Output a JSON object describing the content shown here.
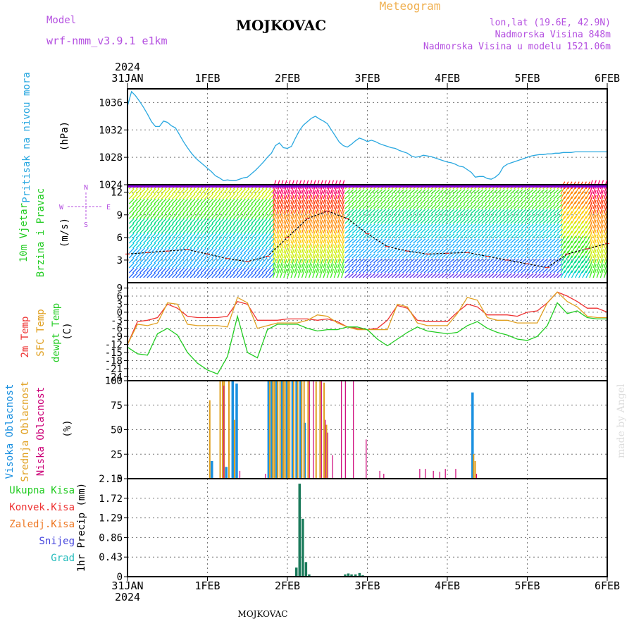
{
  "header": {
    "model_label": "Model",
    "model_name": "wrf-nmm_v3.9.1 e1km",
    "station": "MOJKOVAC",
    "title": "Meteogram",
    "coords": "lon,lat (19.6E, 42.9N)",
    "elevation": "Nadmorska Visina 848m",
    "model_elevation": "Nadmorska Visina u modelu 1521.06m",
    "footer_station": "MOJKOVAC",
    "credit": "made by Angel"
  },
  "colors": {
    "purple": "#b44fe0",
    "orange": "#f0b050",
    "pressure": "#2aa8e0",
    "green": "#22cc22",
    "red": "#ee3333",
    "gold": "#e0a020",
    "magenta": "#cc0077",
    "blue": "#1a90e0",
    "precip": "#1a7a5a",
    "snow": "#4444dd",
    "hail": "#22bbbb",
    "convective": "#ee3333",
    "freezing": "#ee7722"
  },
  "time_axis": {
    "year": "2024",
    "labels": [
      "31JAN",
      "1FEB",
      "2FEB",
      "3FEB",
      "4FEB",
      "5FEB",
      "6FEB"
    ]
  },
  "chart_data": [
    {
      "type": "line",
      "panel": "pressure",
      "ylabel": [
        "Pritisak na nivou mora",
        "(hPa)"
      ],
      "ylim": [
        1024,
        1038
      ],
      "yticks": [
        "1024",
        "1028",
        "1032",
        "1036"
      ],
      "x_days": [
        0,
        0.05,
        0.1,
        0.15,
        0.2,
        0.25,
        0.3,
        0.35,
        0.4,
        0.45,
        0.5,
        0.55,
        0.6,
        0.65,
        0.7,
        0.75,
        0.8,
        0.85,
        0.9,
        0.95,
        1.0,
        1.05,
        1.1,
        1.15,
        1.2,
        1.25,
        1.3,
        1.35,
        1.4,
        1.45,
        1.5,
        1.55,
        1.6,
        1.65,
        1.7,
        1.75,
        1.8,
        1.85,
        1.9,
        1.95,
        2.0,
        2.05,
        2.1,
        2.15,
        2.2,
        2.25,
        2.3,
        2.35,
        2.4,
        2.45,
        2.5,
        2.55,
        2.6,
        2.65,
        2.7,
        2.75,
        2.8,
        2.85,
        2.9,
        2.95,
        3.0,
        3.05,
        3.1,
        3.15,
        3.2,
        3.25,
        3.3,
        3.35,
        3.4,
        3.45,
        3.5,
        3.55,
        3.6,
        3.65,
        3.7,
        3.75,
        3.8,
        3.85,
        3.9,
        3.95,
        4.0,
        4.05,
        4.1,
        4.15,
        4.2,
        4.25,
        4.3,
        4.35,
        4.4,
        4.45,
        4.5,
        4.55,
        4.6,
        4.65,
        4.7,
        4.75,
        4.8,
        4.85,
        4.9,
        4.95,
        5.0,
        5.05,
        5.1,
        5.15,
        5.2,
        5.25,
        5.3,
        5.35,
        5.4,
        5.45,
        5.5,
        5.55,
        5.6,
        5.65,
        5.7,
        5.75,
        5.8,
        5.85,
        5.9,
        5.95,
        6.0
      ],
      "series": [
        {
          "values": [
            1035.5,
            1037.6,
            1037.0,
            1036.2,
            1035.3,
            1034.3,
            1033.2,
            1032.5,
            1032.5,
            1033.3,
            1033.1,
            1032.6,
            1032.3,
            1031.3,
            1030.3,
            1029.4,
            1028.6,
            1027.9,
            1027.4,
            1026.9,
            1026.4,
            1025.9,
            1025.3,
            1025.0,
            1024.6,
            1024.7,
            1024.6,
            1024.6,
            1024.8,
            1025.0,
            1025.1,
            1025.6,
            1026.1,
            1026.7,
            1027.3,
            1028.0,
            1028.6,
            1029.7,
            1030.1,
            1029.4,
            1029.3,
            1029.6,
            1030.8,
            1031.9,
            1032.7,
            1033.2,
            1033.7,
            1034.0,
            1033.6,
            1033.3,
            1032.9,
            1032.0,
            1031.1,
            1030.2,
            1029.7,
            1029.5,
            1029.9,
            1030.4,
            1030.8,
            1030.6,
            1030.3,
            1030.5,
            1030.3,
            1030.0,
            1029.8,
            1029.6,
            1029.4,
            1029.3,
            1029.0,
            1028.8,
            1028.6,
            1028.2,
            1028.0,
            1028.1,
            1028.3,
            1028.2,
            1028.1,
            1027.9,
            1027.7,
            1027.5,
            1027.3,
            1027.2,
            1027.0,
            1026.7,
            1026.6,
            1026.2,
            1025.8,
            1025.1,
            1025.2,
            1025.2,
            1024.9,
            1024.8,
            1025.1,
            1025.6,
            1026.6,
            1027.0,
            1027.2,
            1027.4,
            1027.6,
            1027.8,
            1028.0,
            1028.2,
            1028.3,
            1028.4,
            1028.4,
            1028.5,
            1028.5,
            1028.6,
            1028.6,
            1028.7,
            1028.7,
            1028.7,
            1028.8,
            1028.8,
            1028.8,
            1028.8,
            1028.8,
            1028.8,
            1028.8,
            1028.8,
            1028.8
          ]
        }
      ]
    },
    {
      "type": "line",
      "panel": "wind",
      "ylabel": [
        "10m Vjetar",
        "Brzina i Pravac",
        "(m/s)"
      ],
      "compass": [
        "N",
        "S",
        "W",
        "E"
      ],
      "ylim": [
        0,
        13
      ],
      "yticks": [
        "3",
        "6",
        "9",
        "12"
      ],
      "x_days": [
        0,
        0.25,
        0.5,
        0.75,
        1.0,
        1.25,
        1.5,
        1.75,
        2.0,
        2.25,
        2.5,
        2.75,
        3.0,
        3.25,
        3.5,
        3.75,
        4.0,
        4.25,
        4.5,
        4.75,
        5.0,
        5.25,
        5.5,
        5.75,
        6.0
      ],
      "series": [
        {
          "values": [
            3.8,
            4.0,
            4.2,
            4.4,
            3.8,
            3.2,
            2.8,
            3.5,
            6.0,
            8.5,
            9.5,
            8.5,
            6.5,
            4.8,
            4.2,
            3.8,
            3.9,
            4.0,
            3.5,
            3.0,
            2.5,
            2.0,
            3.8,
            4.5,
            5.2
          ]
        }
      ]
    },
    {
      "type": "line",
      "panel": "temperature",
      "ylabel": [
        "2m Temp",
        "SFC Temp",
        "dewpt Temp",
        "(C)"
      ],
      "ylim": [
        -25.5,
        11
      ],
      "yticks": [
        "-24",
        "-21",
        "-18",
        "-15",
        "-12",
        "-9",
        "-6",
        "-3",
        "0",
        "3",
        "6",
        "9"
      ],
      "x_days": [
        0,
        0.125,
        0.25,
        0.375,
        0.5,
        0.625,
        0.75,
        0.875,
        1.0,
        1.125,
        1.25,
        1.375,
        1.5,
        1.625,
        1.75,
        1.875,
        2.0,
        2.125,
        2.25,
        2.375,
        2.5,
        2.625,
        2.75,
        2.875,
        3.0,
        3.125,
        3.25,
        3.375,
        3.5,
        3.625,
        3.75,
        3.875,
        4.0,
        4.125,
        4.25,
        4.375,
        4.5,
        4.625,
        4.75,
        4.875,
        5.0,
        5.125,
        5.25,
        5.375,
        5.5,
        5.625,
        5.75,
        5.875,
        6.0
      ],
      "series": [
        {
          "values": [
            -12,
            -3.5,
            -3,
            -2,
            3,
            1.5,
            -1.5,
            -2,
            -2,
            -2,
            -1.5,
            4,
            3,
            -3,
            -3,
            -3,
            -2.5,
            -2.5,
            -2.5,
            -3,
            -2.5,
            -3.5,
            -5.5,
            -6,
            -6.5,
            -6,
            -3,
            2.5,
            1.5,
            -3,
            -3.5,
            -3.5,
            -3.5,
            0,
            3,
            2,
            -1,
            -1,
            -1,
            -1.5,
            0,
            0.5,
            3.5,
            7.5,
            6,
            4,
            1.5,
            1.5,
            0
          ]
        },
        {
          "values": [
            -12,
            -4.5,
            -5,
            -4,
            3.5,
            3,
            -4.5,
            -5,
            -5,
            -5,
            -5.5,
            5.5,
            3.5,
            -6,
            -5,
            -4,
            -4,
            -4,
            -3,
            -1,
            -1.5,
            -4,
            -5.5,
            -6.5,
            -6.5,
            -6.5,
            -6.5,
            3,
            2,
            -4,
            -5,
            -5,
            -5,
            -0.5,
            5.5,
            4.5,
            -2,
            -3,
            -3,
            -4,
            -4,
            -4,
            3.5,
            7.5,
            4,
            2,
            -1.5,
            -2,
            -2
          ]
        },
        {
          "values": [
            -13,
            -15.5,
            -16,
            -8,
            -6,
            -8.5,
            -15,
            -19,
            -21.5,
            -23,
            -16.5,
            -1.5,
            -15,
            -17,
            -6.5,
            -4.5,
            -4.5,
            -4.5,
            -6,
            -7,
            -6.5,
            -6.5,
            -5.5,
            -5.5,
            -6.5,
            -10,
            -12.5,
            -10,
            -7.5,
            -5.5,
            -7,
            -7.5,
            -8,
            -7.5,
            -5,
            -3.5,
            -6,
            -7.5,
            -8.5,
            -10,
            -10.5,
            -9,
            -5,
            3.5,
            -0.5,
            0.5,
            -2,
            -2.5,
            -2.5
          ]
        }
      ]
    },
    {
      "type": "bar",
      "panel": "cloud",
      "ylabel": [
        "Visoka Oblacnost",
        "Srednja Oblacnost",
        "Niska Oblacnost",
        "(%)"
      ],
      "ylim": [
        0,
        100
      ],
      "yticks": [
        "0",
        "25",
        "50",
        "75",
        "100"
      ],
      "series": [
        {
          "name": "Visoka Oblacnost",
          "x_days": [
            1.04,
            1.22,
            1.3,
            1.35,
            1.75,
            1.79,
            1.85,
            1.92,
            1.98,
            2.05,
            2.1,
            2.15,
            2.2,
            4.3
          ],
          "values": [
            18,
            12,
            100,
            97,
            100,
            100,
            100,
            100,
            100,
            100,
            100,
            100,
            57,
            88
          ]
        },
        {
          "name": "Srednja Oblacnost",
          "x_days": [
            1.02,
            1.15,
            1.18,
            1.2,
            1.26,
            1.33,
            1.77,
            1.81,
            1.83,
            1.87,
            1.9,
            1.94,
            1.96,
            2.0,
            2.02,
            2.07,
            2.12,
            2.17,
            2.2,
            2.25,
            2.35,
            2.4,
            2.45,
            2.48,
            4.32,
            4.34
          ],
          "values": [
            80,
            100,
            100,
            100,
            100,
            60,
            100,
            100,
            100,
            100,
            100,
            100,
            100,
            100,
            100,
            100,
            100,
            100,
            100,
            100,
            99,
            100,
            98,
            55,
            25,
            18
          ]
        },
        {
          "name": "Niska Oblacnost",
          "x_days": [
            1.2,
            1.4,
            1.72,
            2.27,
            2.32,
            2.42,
            2.47,
            2.5,
            2.56,
            2.67,
            2.72,
            2.82,
            2.98,
            3.15,
            3.2,
            3.65,
            3.72,
            3.82,
            3.9,
            3.97,
            4.1,
            4.36
          ],
          "values": [
            95,
            8,
            5,
            100,
            100,
            100,
            60,
            47,
            24,
            100,
            100,
            100,
            40,
            8,
            5,
            10,
            10,
            8,
            7,
            10,
            10,
            5
          ]
        }
      ]
    },
    {
      "type": "bar",
      "panel": "precip",
      "ylabel": [
        "1hr Precip (mm)"
      ],
      "legend": [
        "Ukupna Kisa",
        "Konvek.Kisa",
        "Zaledj.Kisa",
        "Snijeg",
        "Grad"
      ],
      "ylim": [
        0,
        2.15
      ],
      "yticks": [
        "0",
        "0.43",
        "0.86",
        "1.29",
        "1.72",
        "2.15"
      ],
      "series": [
        {
          "name": "Ukupna Kisa",
          "x_days": [
            2.11,
            2.15,
            2.19,
            2.23,
            2.27,
            2.72,
            2.76,
            2.8,
            2.85,
            2.9,
            2.94
          ],
          "values": [
            0.2,
            2.04,
            1.27,
            0.32,
            0.05,
            0.05,
            0.07,
            0.05,
            0.05,
            0.08,
            0.03
          ]
        }
      ]
    }
  ]
}
